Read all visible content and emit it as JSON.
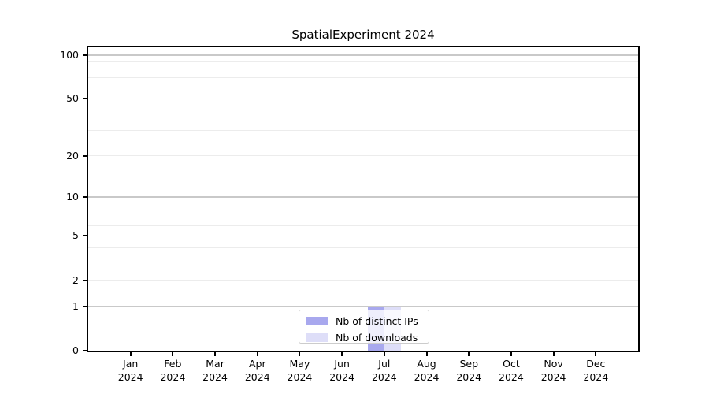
{
  "chart_data": {
    "type": "bar",
    "title": "SpatialExperiment 2024",
    "categories": [
      "Jan",
      "Feb",
      "Mar",
      "Apr",
      "May",
      "Jun",
      "Jul",
      "Aug",
      "Sep",
      "Oct",
      "Nov",
      "Dec"
    ],
    "x_year": "2024",
    "series": [
      {
        "name": "Nb of distinct IPs",
        "color": "#a8a8ee",
        "values": [
          0,
          0,
          0,
          0,
          0,
          0,
          1,
          0,
          0,
          0,
          0,
          0
        ]
      },
      {
        "name": "Nb of downloads",
        "color": "#dedef8",
        "values": [
          0,
          0,
          0,
          0,
          0,
          0,
          1,
          0,
          0,
          0,
          0,
          0
        ]
      }
    ],
    "y_axis": {
      "scale": "log1p",
      "tick_labels": [
        "100",
        "50",
        "20",
        "10",
        "5",
        "2",
        "1",
        "0"
      ],
      "tick_values": [
        100,
        50,
        20,
        10,
        5,
        2,
        1,
        0
      ],
      "major_gridlines": [
        1,
        10,
        100
      ],
      "minor_gridlines": [
        2,
        3,
        4,
        5,
        6,
        7,
        8,
        9,
        20,
        30,
        40,
        50,
        60,
        70,
        80,
        90
      ],
      "top_value": 113,
      "bottom_value": 0
    },
    "legend": {
      "position": "lower center"
    },
    "grid": true,
    "colors": {
      "major_grid": "#c9c9c9",
      "minor_grid": "#ececec",
      "spine": "#000000",
      "background": "#ffffff"
    }
  }
}
